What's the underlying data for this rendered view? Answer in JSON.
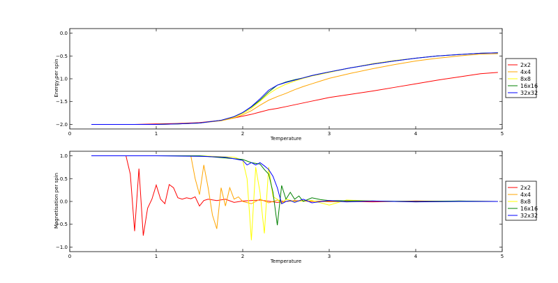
{
  "chart_data": [
    {
      "type": "line",
      "xlabel": "Temperature",
      "ylabel": "Energy per spin",
      "xlim": [
        0,
        5
      ],
      "ylim": [
        -2.1,
        0.1
      ],
      "xticks": [
        "0",
        "1",
        "2",
        "3",
        "4",
        "5"
      ],
      "yticks": [
        "0.0",
        "−0.5",
        "−1.0",
        "−1.5",
        "−2.0"
      ],
      "ytick_values": [
        0.0,
        -0.5,
        -1.0,
        -1.5,
        -2.0
      ],
      "grid": false,
      "legend_position": "outside-right",
      "x": [
        0.25,
        0.5,
        0.75,
        1.0,
        1.25,
        1.5,
        1.75,
        1.9,
        2.0,
        2.1,
        2.2,
        2.3,
        2.4,
        2.5,
        2.6,
        2.7,
        2.8,
        2.9,
        3.0,
        3.25,
        3.5,
        3.75,
        4.0,
        4.25,
        4.5,
        4.75,
        4.95
      ],
      "series": [
        {
          "name": "2x2",
          "color": "#ff0000",
          "values": [
            -2.0,
            -2.0,
            -2.0,
            -1.99,
            -1.98,
            -1.96,
            -1.91,
            -1.86,
            -1.82,
            -1.78,
            -1.73,
            -1.68,
            -1.65,
            -1.61,
            -1.57,
            -1.53,
            -1.49,
            -1.45,
            -1.41,
            -1.34,
            -1.27,
            -1.19,
            -1.11,
            -1.03,
            -0.96,
            -0.89,
            -0.86
          ]
        },
        {
          "name": "4x4",
          "color": "#ffa500",
          "values": [
            -2.0,
            -2.0,
            -2.0,
            -2.0,
            -1.99,
            -1.97,
            -1.92,
            -1.86,
            -1.79,
            -1.7,
            -1.58,
            -1.47,
            -1.39,
            -1.32,
            -1.24,
            -1.17,
            -1.11,
            -1.05,
            -0.99,
            -0.88,
            -0.78,
            -0.69,
            -0.61,
            -0.55,
            -0.5,
            -0.46,
            -0.45
          ]
        },
        {
          "name": "8x8",
          "color": "#ffff00",
          "values": [
            -2.0,
            -2.0,
            -2.0,
            -2.0,
            -1.99,
            -1.97,
            -1.91,
            -1.84,
            -1.76,
            -1.65,
            -1.49,
            -1.33,
            -1.21,
            -1.12,
            -1.05,
            -0.99,
            -0.94,
            -0.9,
            -0.86,
            -0.76,
            -0.67,
            -0.6,
            -0.55,
            -0.5,
            -0.47,
            -0.44,
            -0.43
          ]
        },
        {
          "name": "16x16",
          "color": "#008000",
          "values": [
            -2.0,
            -2.0,
            -2.0,
            -2.0,
            -1.99,
            -1.97,
            -1.91,
            -1.83,
            -1.74,
            -1.62,
            -1.47,
            -1.29,
            -1.14,
            -1.07,
            -1.02,
            -0.98,
            -0.93,
            -0.89,
            -0.85,
            -0.76,
            -0.68,
            -0.61,
            -0.55,
            -0.5,
            -0.47,
            -0.44,
            -0.43
          ]
        },
        {
          "name": "32x32",
          "color": "#0000ff",
          "values": [
            -2.0,
            -2.0,
            -2.0,
            -2.0,
            -1.99,
            -1.97,
            -1.91,
            -1.83,
            -1.74,
            -1.61,
            -1.44,
            -1.25,
            -1.14,
            -1.08,
            -1.03,
            -0.98,
            -0.93,
            -0.89,
            -0.85,
            -0.76,
            -0.68,
            -0.61,
            -0.55,
            -0.5,
            -0.47,
            -0.44,
            -0.43
          ]
        }
      ]
    },
    {
      "type": "line",
      "xlabel": "Temperature",
      "ylabel": "Magnetisation per spin",
      "xlim": [
        0,
        5
      ],
      "ylim": [
        -1.1,
        1.1
      ],
      "xticks": [
        "0",
        "1",
        "2",
        "3",
        "4",
        "5"
      ],
      "yticks": [
        "1.0",
        "0.5",
        "0.0",
        "−0.5",
        "−1.0"
      ],
      "ytick_values": [
        1.0,
        0.5,
        0.0,
        -0.5,
        -1.0
      ],
      "grid": false,
      "legend_position": "outside-right",
      "series": [
        {
          "name": "2x2",
          "color": "#ff0000",
          "x": [
            0.25,
            0.5,
            0.65,
            0.7,
            0.75,
            0.8,
            0.85,
            0.9,
            0.95,
            1.0,
            1.05,
            1.1,
            1.15,
            1.2,
            1.25,
            1.3,
            1.35,
            1.4,
            1.45,
            1.5,
            1.55,
            1.6,
            1.7,
            1.8,
            1.9,
            2.0,
            2.2,
            2.4,
            2.6,
            2.8,
            3.0,
            3.5,
            4.0,
            4.5,
            4.95
          ],
          "values": [
            1.0,
            1.0,
            1.0,
            0.6,
            -0.65,
            0.72,
            -0.75,
            -0.15,
            0.05,
            0.36,
            0.05,
            -0.05,
            0.37,
            0.3,
            0.08,
            0.05,
            0.08,
            0.06,
            0.1,
            -0.1,
            0.02,
            0.05,
            0.02,
            0.05,
            -0.02,
            0.01,
            0.03,
            -0.02,
            0.02,
            0.0,
            0.01,
            -0.01,
            0.01,
            0.0,
            0.0
          ]
        },
        {
          "name": "4x4",
          "color": "#ffa500",
          "x": [
            0.25,
            1.0,
            1.4,
            1.45,
            1.5,
            1.55,
            1.6,
            1.65,
            1.7,
            1.75,
            1.8,
            1.85,
            1.9,
            1.95,
            2.0,
            2.1,
            2.2,
            2.3,
            2.4,
            2.5,
            2.7,
            3.0,
            3.5,
            4.0,
            4.5,
            4.95
          ],
          "values": [
            1.0,
            1.0,
            1.0,
            0.5,
            0.15,
            0.8,
            0.3,
            -0.3,
            -0.6,
            0.3,
            -0.1,
            0.3,
            0.05,
            0.1,
            0.0,
            -0.05,
            0.05,
            -0.03,
            0.03,
            0.0,
            0.02,
            -0.01,
            0.01,
            -0.01,
            0.01,
            0.0
          ]
        },
        {
          "name": "8x8",
          "color": "#ffff00",
          "x": [
            0.25,
            1.5,
            1.9,
            2.0,
            2.05,
            2.1,
            2.15,
            2.2,
            2.25,
            2.3,
            2.35,
            2.4,
            2.45,
            2.5,
            2.6,
            2.8,
            3.0,
            3.2,
            3.5,
            4.0,
            4.5,
            4.95
          ],
          "values": [
            1.0,
            1.0,
            0.97,
            0.9,
            0.5,
            -0.85,
            0.75,
            0.2,
            -0.7,
            0.75,
            0.1,
            0.05,
            -0.05,
            0.05,
            0.0,
            0.02,
            -0.08,
            0.03,
            0.01,
            -0.01,
            0.0,
            0.0
          ]
        },
        {
          "name": "16x16",
          "color": "#008000",
          "x": [
            0.25,
            1.5,
            2.0,
            2.1,
            2.2,
            2.25,
            2.3,
            2.35,
            2.4,
            2.45,
            2.5,
            2.55,
            2.6,
            2.65,
            2.7,
            2.8,
            2.9,
            3.0,
            3.5,
            4.0,
            4.5,
            4.95
          ],
          "values": [
            1.0,
            1.0,
            0.92,
            0.85,
            0.82,
            0.7,
            0.6,
            0.2,
            -0.52,
            0.35,
            0.05,
            0.2,
            0.05,
            0.12,
            0.0,
            0.08,
            0.04,
            0.02,
            0.01,
            0.0,
            0.01,
            0.0
          ]
        },
        {
          "name": "32x32",
          "color": "#0000ff",
          "x": [
            0.25,
            1.0,
            1.5,
            1.8,
            2.0,
            2.05,
            2.1,
            2.15,
            2.2,
            2.25,
            2.3,
            2.35,
            2.4,
            2.45,
            2.5,
            2.55,
            2.6,
            2.7,
            2.8,
            3.0,
            3.2,
            3.5,
            4.0,
            4.5,
            4.95
          ],
          "values": [
            1.0,
            1.0,
            0.99,
            0.97,
            0.9,
            0.8,
            0.85,
            0.8,
            0.85,
            0.78,
            0.7,
            0.55,
            0.3,
            -0.05,
            0.0,
            0.02,
            -0.02,
            0.05,
            -0.03,
            0.02,
            -0.01,
            0.01,
            -0.01,
            0.0,
            0.0
          ]
        }
      ]
    }
  ]
}
